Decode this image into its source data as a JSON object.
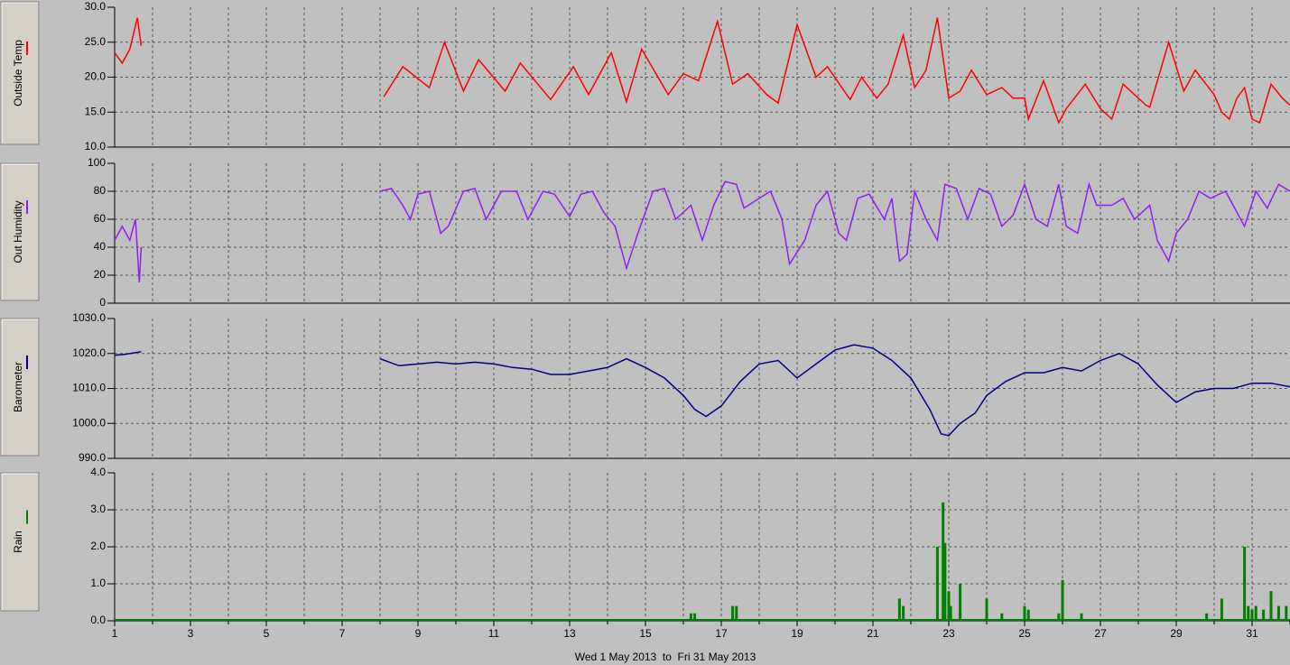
{
  "chart_data": [
    {
      "type": "line",
      "ylabel": "Outside Temp",
      "color": "#ff0000",
      "x": [
        1.0,
        1.2,
        1.4,
        1.6,
        1.7,
        null,
        8.1,
        8.6,
        9.3,
        9.7,
        10.2,
        10.6,
        11.3,
        11.7,
        12.5,
        13.1,
        13.5,
        14.1,
        14.5,
        14.9,
        15.6,
        16.0,
        16.4,
        16.9,
        17.3,
        17.7,
        18.2,
        18.5,
        19.0,
        19.5,
        19.8,
        20.4,
        20.7,
        21.1,
        21.4,
        21.8,
        22.1,
        22.4,
        22.7,
        23.0,
        23.3,
        23.6,
        24.0,
        24.4,
        24.7,
        25.0,
        25.1,
        25.5,
        25.9,
        26.1,
        26.6,
        27.0,
        27.3,
        27.6,
        28.2,
        28.3,
        28.8,
        29.2,
        29.5,
        30.0,
        30.2,
        30.4,
        30.6,
        30.8,
        31.0,
        31.2,
        31.5,
        31.8,
        32.0
      ],
      "values": [
        23.5,
        22,
        24,
        28.5,
        24.5,
        null,
        17.2,
        21.5,
        18.5,
        25,
        18,
        22.5,
        18,
        22,
        16.8,
        21.5,
        17.5,
        23.5,
        16.5,
        24,
        17.5,
        20.5,
        19.5,
        28,
        19,
        20.5,
        17.5,
        16.3,
        27.5,
        20,
        21.5,
        16.8,
        20,
        17,
        19,
        26,
        18.5,
        21,
        28.5,
        17,
        18,
        21,
        17.5,
        18.5,
        17,
        17,
        14,
        19.5,
        13.5,
        15.5,
        19,
        15.5,
        14,
        19,
        16,
        15.7,
        25,
        18,
        21,
        17.5,
        15,
        14,
        17,
        18.5,
        14,
        13.5,
        19,
        17,
        16
      ],
      "xlim": [
        1,
        32
      ],
      "ylim": [
        10,
        30
      ],
      "yticks": [
        {
          "value": 10,
          "label": "10.0"
        },
        {
          "value": 15,
          "label": "15.0"
        },
        {
          "value": 20,
          "label": "20.0"
        },
        {
          "value": 25,
          "label": "25.0"
        },
        {
          "value": 30,
          "label": "30.0"
        }
      ]
    },
    {
      "type": "line",
      "ylabel": "Out Humidity",
      "color": "#9020f0",
      "x": [
        1.0,
        1.2,
        1.4,
        1.55,
        1.65,
        1.7,
        null,
        8.0,
        8.3,
        8.6,
        8.8,
        9.0,
        9.3,
        9.6,
        9.8,
        10.2,
        10.5,
        10.8,
        11.2,
        11.6,
        11.9,
        12.3,
        12.6,
        13.0,
        13.3,
        13.6,
        13.9,
        14.2,
        14.5,
        14.8,
        15.2,
        15.5,
        15.8,
        16.2,
        16.5,
        16.8,
        17.1,
        17.4,
        17.6,
        18.0,
        18.3,
        18.6,
        18.8,
        19.2,
        19.5,
        19.8,
        20.1,
        20.3,
        20.6,
        20.9,
        21.3,
        21.5,
        21.7,
        21.9,
        22.1,
        22.4,
        22.7,
        22.9,
        23.2,
        23.5,
        23.8,
        24.1,
        24.4,
        24.7,
        25.0,
        25.3,
        25.6,
        25.9,
        26.1,
        26.4,
        26.7,
        26.9,
        27.3,
        27.6,
        27.9,
        28.3,
        28.5,
        28.8,
        29.0,
        29.3,
        29.6,
        29.9,
        30.3,
        30.5,
        30.8,
        31.1,
        31.4,
        31.7,
        32.0
      ],
      "values": [
        45,
        55,
        45,
        60,
        15,
        40,
        null,
        80,
        82,
        70,
        60,
        78,
        80,
        50,
        55,
        80,
        82,
        60,
        80,
        80,
        60,
        80,
        78,
        62,
        78,
        80,
        65,
        55,
        25,
        50,
        80,
        82,
        60,
        70,
        45,
        70,
        87,
        85,
        68,
        75,
        80,
        60,
        28,
        45,
        70,
        80,
        50,
        45,
        75,
        78,
        60,
        75,
        30,
        35,
        80,
        60,
        45,
        85,
        82,
        60,
        82,
        78,
        55,
        63,
        85,
        60,
        55,
        85,
        55,
        50,
        85,
        70,
        70,
        75,
        60,
        70,
        45,
        30,
        50,
        60,
        80,
        75,
        80,
        70,
        55,
        80,
        68,
        85,
        80
      ],
      "xlim": [
        1,
        32
      ],
      "ylim": [
        0,
        100
      ],
      "yticks": [
        0,
        20,
        40,
        60,
        80,
        100
      ]
    },
    {
      "type": "line",
      "ylabel": "Barometer",
      "color": "#000080",
      "x": [
        1.0,
        1.3,
        1.7,
        null,
        8.0,
        8.5,
        9.0,
        9.5,
        10.0,
        10.5,
        11.0,
        11.5,
        12.0,
        12.5,
        13.0,
        13.5,
        14.0,
        14.5,
        15.0,
        15.5,
        16.0,
        16.3,
        16.6,
        17.0,
        17.5,
        18.0,
        18.5,
        19.0,
        19.5,
        20.0,
        20.5,
        21.0,
        21.5,
        22.0,
        22.5,
        22.8,
        23.0,
        23.3,
        23.7,
        24.0,
        24.5,
        25.0,
        25.5,
        26.0,
        26.5,
        27.0,
        27.5,
        28.0,
        28.5,
        29.0,
        29.5,
        30.0,
        30.5,
        31.0,
        31.5,
        32.0
      ],
      "values": [
        1019.5,
        1019.8,
        1020.5,
        null,
        1018.5,
        1016.5,
        1017,
        1017.5,
        1017,
        1017.5,
        1017,
        1016,
        1015.5,
        1014,
        1014,
        1015,
        1016,
        1018.5,
        1016,
        1013,
        1008,
        1004,
        1002,
        1005,
        1012,
        1017,
        1018,
        1013,
        1017,
        1021,
        1022.5,
        1021.5,
        1018,
        1013,
        1004,
        997,
        996.5,
        1000,
        1003,
        1008,
        1012,
        1014.5,
        1014.5,
        1016,
        1015,
        1018,
        1020,
        1017,
        1011,
        1006,
        1009,
        1010,
        1010,
        1011.5,
        1011.5,
        1010.5
      ],
      "xlim": [
        1,
        32
      ],
      "ylim": [
        990,
        1030
      ],
      "yticks": [
        {
          "value": 990,
          "label": "990.0"
        },
        {
          "value": 1000,
          "label": "1000.0"
        },
        {
          "value": 1010,
          "label": "1010.0"
        },
        {
          "value": 1020,
          "label": "1020.0"
        },
        {
          "value": 1030,
          "label": "1030.0"
        }
      ]
    },
    {
      "type": "bar",
      "ylabel": "Rain",
      "color": "#008000",
      "x": [
        16.2,
        16.3,
        17.3,
        17.4,
        21.7,
        21.8,
        22.7,
        22.85,
        22.9,
        23.0,
        23.05,
        23.3,
        24.0,
        24.4,
        25.0,
        25.1,
        25.9,
        26.0,
        26.5,
        29.8,
        30.2,
        30.8,
        30.9,
        31.0,
        31.1,
        31.3,
        31.5,
        31.7,
        31.9
      ],
      "values": [
        0.2,
        0.2,
        0.4,
        0.4,
        0.6,
        0.4,
        2.0,
        3.2,
        2.1,
        0.8,
        0.4,
        1.0,
        0.6,
        0.2,
        0.4,
        0.3,
        0.2,
        1.1,
        0.2,
        0.2,
        0.6,
        2.0,
        0.4,
        0.3,
        0.4,
        0.3,
        0.8,
        0.4,
        0.4
      ],
      "xlim": [
        1,
        32
      ],
      "ylim": [
        0,
        4
      ],
      "yticks": [
        {
          "value": 0,
          "label": "0.0"
        },
        {
          "value": 1,
          "label": "1.0"
        },
        {
          "value": 2,
          "label": "2.0"
        },
        {
          "value": 3,
          "label": "3.0"
        },
        {
          "value": 4,
          "label": "4.0"
        }
      ],
      "xticks": [
        1,
        3,
        5,
        7,
        9,
        11,
        13,
        15,
        17,
        19,
        21,
        23,
        25,
        27,
        29,
        31
      ],
      "xminorticks": [
        2,
        4,
        6,
        8,
        10,
        12,
        14,
        16,
        18,
        20,
        22,
        24,
        26,
        28,
        30,
        32
      ],
      "xlabel": "Wed 1 May 2013  to  Fri 31 May 2013"
    }
  ]
}
